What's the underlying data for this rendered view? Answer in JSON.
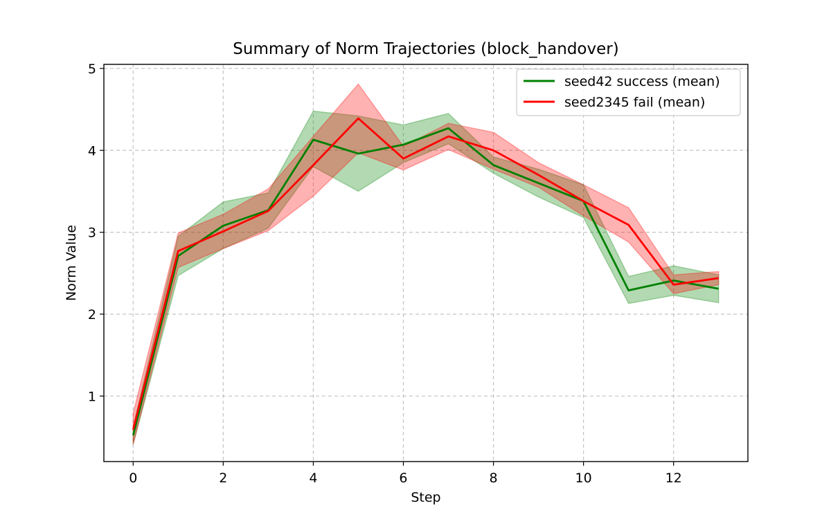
{
  "chart_data": {
    "type": "line",
    "title": "Summary of Norm Trajectories (block_handover)",
    "xlabel": "Step",
    "ylabel": "Norm Value",
    "xlim": [
      -0.65,
      13.65
    ],
    "ylim": [
      0.2,
      5.05
    ],
    "xticks": [
      0,
      2,
      4,
      6,
      8,
      10,
      12
    ],
    "yticks": [
      1,
      2,
      3,
      4,
      5
    ],
    "grid": true,
    "legend_position": "top-right",
    "x": [
      0,
      1,
      2,
      3,
      4,
      5,
      6,
      7,
      8,
      9,
      10,
      11,
      12,
      13
    ],
    "series": [
      {
        "name": "seed42 success (mean)",
        "color": "#008000",
        "values": [
          0.52,
          2.71,
          3.08,
          3.27,
          4.13,
          3.96,
          4.07,
          4.27,
          3.82,
          3.6,
          3.38,
          2.29,
          2.41,
          2.31
        ],
        "lower": [
          0.41,
          2.47,
          2.8,
          3.05,
          3.8,
          3.5,
          3.85,
          4.08,
          3.72,
          3.43,
          3.18,
          2.13,
          2.23,
          2.14
        ],
        "upper": [
          0.63,
          2.95,
          3.37,
          3.48,
          4.48,
          4.42,
          4.31,
          4.45,
          3.92,
          3.77,
          3.58,
          2.46,
          2.59,
          2.48
        ]
      },
      {
        "name": "seed2345 fail (mean)",
        "color": "#ff0000",
        "values": [
          0.59,
          2.77,
          3.01,
          3.26,
          3.82,
          4.39,
          3.9,
          4.17,
          4.0,
          3.7,
          3.38,
          3.09,
          2.36,
          2.44
        ],
        "lower": [
          0.41,
          2.57,
          2.8,
          3.02,
          3.44,
          3.97,
          3.76,
          4.01,
          3.77,
          3.55,
          3.2,
          2.88,
          2.25,
          2.36
        ],
        "upper": [
          0.79,
          2.99,
          3.22,
          3.53,
          4.17,
          4.81,
          4.05,
          4.33,
          4.22,
          3.85,
          3.58,
          3.3,
          2.48,
          2.52
        ]
      }
    ]
  }
}
